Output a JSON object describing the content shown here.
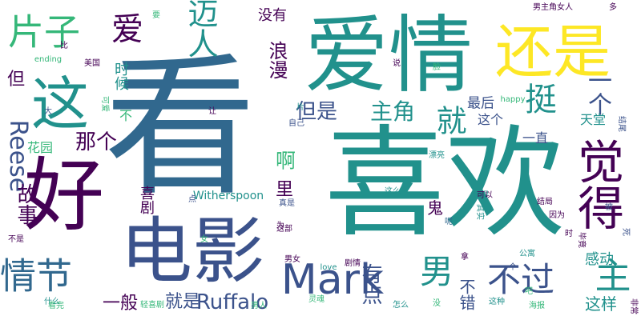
{
  "palette": {
    "background": "#ffffff",
    "dark_purple": "#440154",
    "indigo": "#3b528b",
    "blue": "#31688e",
    "teal": "#21918c",
    "green": "#35b779",
    "yellow": "#fde725"
  },
  "words": [
    "看",
    "喜欢",
    "爱情",
    "好",
    "电影",
    "还是",
    "这",
    "觉得",
    "Mark",
    "片子",
    "爱",
    "迈人",
    "情节",
    "男",
    "不过",
    "主",
    "挺",
    "就",
    "一个",
    "主角",
    "但是",
    "Reese",
    "Ruffalo",
    "故事",
    "那个",
    "有点",
    "啊",
    "里",
    "一般",
    "就是",
    "不错",
    "这样",
    "鬼",
    "感动",
    "最后",
    "天堂",
    "这个",
    "一直",
    "没有",
    "浪漫",
    "时候",
    "喜剧",
    "花园",
    "但",
    "不",
    "Witherspoon",
    "ending",
    "美国",
    "可爱",
    "happy",
    "love",
    "说",
    "多",
    "男主角女人",
    "结尾",
    "死",
    "被",
    "真是",
    "这部",
    "记得",
    "其实",
    "结局",
    "因为",
    "男女",
    "公寓",
    "什么",
    "不是",
    "轻喜剧",
    "看完",
    "灵魂",
    "男人",
    "这种",
    "海报",
    "非常",
    "时",
    "毕竟",
    "拿",
    "没",
    "女",
    "片",
    "为",
    "脸",
    "大",
    "点",
    "这么",
    "自己",
    "漂亮",
    "可以",
    "要",
    "比",
    "能",
    "让",
    "剧情",
    "呢",
    "吧",
    "怎么",
    "个",
    "演",
    "导演"
  ]
}
